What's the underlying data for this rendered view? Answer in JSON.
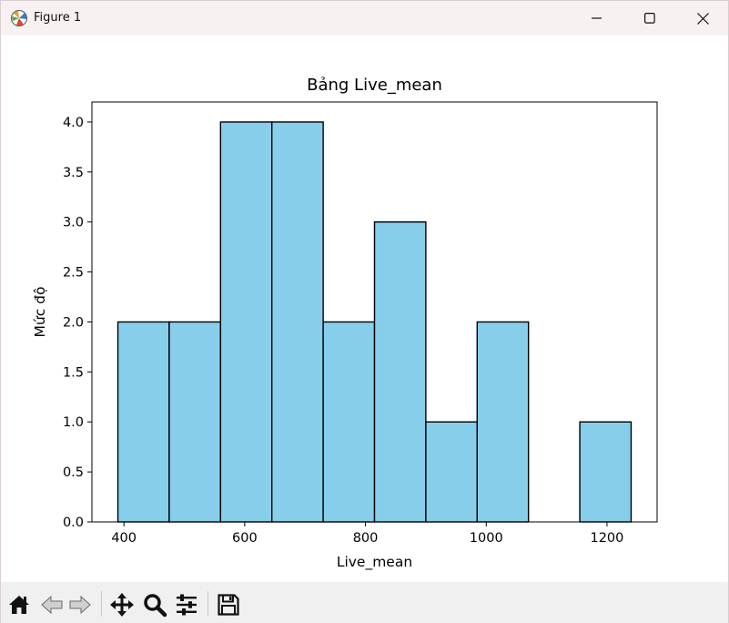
{
  "window": {
    "title": "Figure 1",
    "controls": {
      "minimize": "minimize",
      "maximize": "maximize",
      "close": "close"
    }
  },
  "toolbar": {
    "items": [
      "home-icon",
      "back-icon",
      "forward-icon",
      "pan-icon",
      "zoom-icon",
      "configure-subplots-icon",
      "save-icon"
    ]
  },
  "colors": {
    "bar_fill": "#87ceeb",
    "bar_edge": "#000000",
    "titlebar_bg": "#f8f1f1",
    "toolbar_bg": "#f0f0f0"
  },
  "chart_data": {
    "type": "bar",
    "title": "Bảng Live_mean",
    "xlabel": "Live_mean",
    "ylabel": "Mức độ",
    "bins": [
      [
        390,
        475,
        2
      ],
      [
        475,
        560,
        2
      ],
      [
        560,
        645,
        4
      ],
      [
        645,
        730,
        4
      ],
      [
        730,
        815,
        2
      ],
      [
        815,
        900,
        3
      ],
      [
        900,
        985,
        1
      ],
      [
        985,
        1070,
        2
      ],
      [
        1070,
        1155,
        0
      ],
      [
        1155,
        1240,
        1
      ]
    ],
    "xlim": [
      347,
      1283
    ],
    "ylim": [
      0,
      4.2
    ],
    "xticks": [
      400,
      600,
      800,
      1000,
      1200
    ],
    "xtick_labels": [
      "400",
      "600",
      "800",
      "1000",
      "1200"
    ],
    "yticks": [
      0,
      0.5,
      1,
      1.5,
      2,
      2.5,
      3,
      3.5,
      4
    ],
    "ytick_labels": [
      "0.0",
      "0.5",
      "1.0",
      "1.5",
      "2.0",
      "2.5",
      "3.0",
      "3.5",
      "4.0"
    ],
    "grid": false,
    "legend": "none"
  }
}
